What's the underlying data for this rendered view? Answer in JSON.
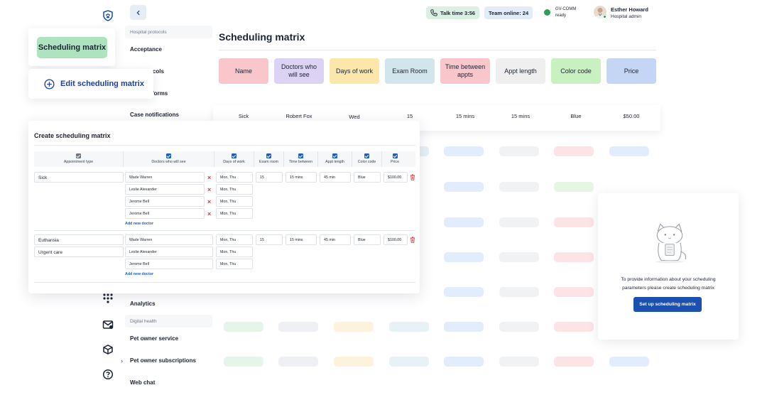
{
  "header": {
    "talk_time": "Talk time 3:56",
    "team_online": "Team online: 24",
    "gv_comm": "GV-COMM",
    "gv_status": "ready",
    "user_name": "Esther Howard",
    "user_role": "Hospital admin"
  },
  "nav": {
    "section_1": "Hospital protocols",
    "acceptance": "Acceptance",
    "protocols_partial": "ocols",
    "forms_partial": "forms",
    "case_notifications": "Case notifications",
    "analytics": "Analytics",
    "section_2": "Digital health",
    "pet_owner_service": "Pet owner service",
    "pet_owner_subscriptions": "Pet owner subscriptions",
    "web_chat": "Web chat"
  },
  "main": {
    "title": "Scheduling matrix",
    "columns": [
      {
        "label": "Name",
        "color": "#f8c6cb",
        "value": "Sick"
      },
      {
        "label": "Doctors who will see",
        "color": "#dcd2f4",
        "value": "Robert Fox"
      },
      {
        "label": "Days of work",
        "color": "#fbe7a9",
        "value": "Wed"
      },
      {
        "label": "Exam Room",
        "color": "#d2e5ec",
        "value": "15"
      },
      {
        "label": "Time between appts",
        "color": "#f8c6cb",
        "value": "15 mins"
      },
      {
        "label": "Appt length",
        "color": "#efefef",
        "value": "15 mins"
      },
      {
        "label": "Color code",
        "color": "#c9f0c0",
        "value": "Blue"
      },
      {
        "label": "Price",
        "color": "#c5d6f5",
        "value": "$50.00"
      }
    ]
  },
  "chips": {
    "scheduling_matrix": "Scheduling matrix",
    "edit_scheduling_matrix": "Edit scheduling matrix"
  },
  "modal": {
    "title": "Create scheduling matrix",
    "headers": {
      "appointment_type": "Appointment type",
      "doctors": "Doctors who will see",
      "days": "Days of work",
      "exam_room": "Exam room",
      "time_between": "Time between",
      "appt_length": "Appt length",
      "color_code": "Color code",
      "price": "Price"
    },
    "group1": {
      "type": "Sick",
      "doctors": [
        "Wade Warren",
        "Leslie Alexander",
        "Jerome Bell",
        "Jerome Bell"
      ],
      "days": [
        "Mon, Thu",
        "Mon, Thu",
        "Mon, Thu",
        "Mon, Thu"
      ],
      "exam_room": "15",
      "time_between": "15 mins",
      "appt_length": "45 min",
      "color_code": "Blue",
      "price": "$100.00"
    },
    "group2": {
      "types": [
        "Euthansia",
        "Urgent care"
      ],
      "doctors": [
        "Wade Warren",
        "Leslie Alexander",
        "Jerome Bell"
      ],
      "days": [
        "Mon, Thu",
        "Mon, Thu",
        "Mon, Thu"
      ],
      "exam_room": "15",
      "time_between": "15 mins",
      "appt_length": "45 min",
      "color_code": "Blue",
      "price": "$100.00"
    },
    "add_new_doctor": "Add new doctor"
  },
  "empty_state": {
    "text": "To provide information about your scheduling parameters please create scheduling matrix",
    "button": "Set up scheduling matrix"
  },
  "colors": {
    "accent": "#1b4fb0",
    "danger": "#d63a3a"
  }
}
